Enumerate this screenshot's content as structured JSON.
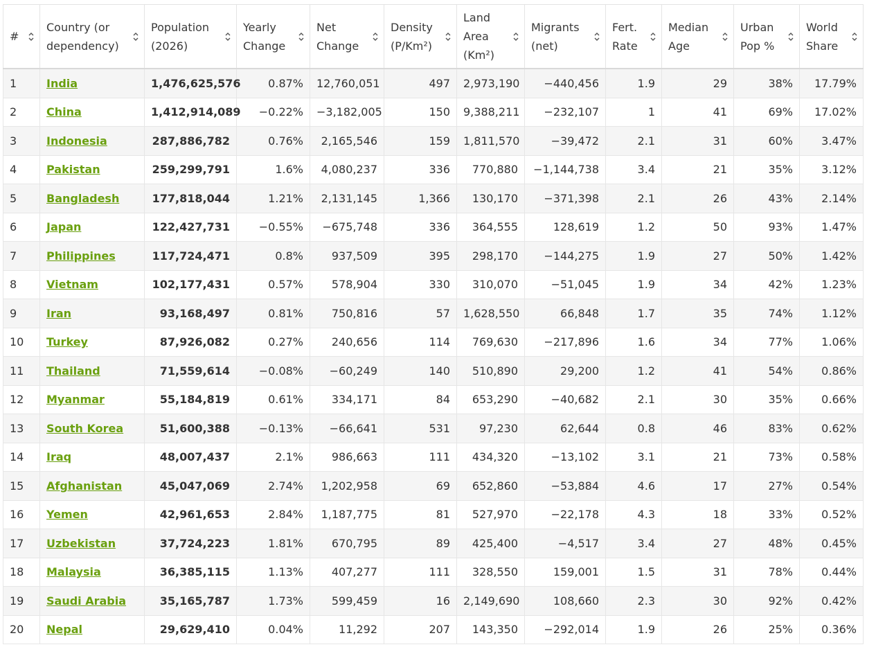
{
  "headers": [
    {
      "line1": "#",
      "line2": ""
    },
    {
      "line1": "Country (or",
      "line2": "dependency)"
    },
    {
      "line1": "Population",
      "line2": "(2026)"
    },
    {
      "line1": "Yearly",
      "line2": "Change"
    },
    {
      "line1": "Net",
      "line2": "Change"
    },
    {
      "line1": "Density",
      "line2": "(P/Km²)"
    },
    {
      "line1": "Land",
      "line2": "Area",
      "line3": "(Km²)"
    },
    {
      "line1": "Migrants",
      "line2": "(net)"
    },
    {
      "line1": "Fert.",
      "line2": "Rate"
    },
    {
      "line1": "Median",
      "line2": "Age"
    },
    {
      "line1": "Urban",
      "line2": "Pop %"
    },
    {
      "line1": "World",
      "line2": "Share"
    }
  ],
  "rows": [
    [
      "1",
      "India",
      "1,476,625,576",
      "0.87%",
      "12,760,051",
      "497",
      "2,973,190",
      "−440,456",
      "1.9",
      "29",
      "38%",
      "17.79%"
    ],
    [
      "2",
      "China",
      "1,412,914,089",
      "−0.22%",
      "−3,182,005",
      "150",
      "9,388,211",
      "−232,107",
      "1",
      "41",
      "69%",
      "17.02%"
    ],
    [
      "3",
      "Indonesia",
      "287,886,782",
      "0.76%",
      "2,165,546",
      "159",
      "1,811,570",
      "−39,472",
      "2.1",
      "31",
      "60%",
      "3.47%"
    ],
    [
      "4",
      "Pakistan",
      "259,299,791",
      "1.6%",
      "4,080,237",
      "336",
      "770,880",
      "−1,144,738",
      "3.4",
      "21",
      "35%",
      "3.12%"
    ],
    [
      "5",
      "Bangladesh",
      "177,818,044",
      "1.21%",
      "2,131,145",
      "1,366",
      "130,170",
      "−371,398",
      "2.1",
      "26",
      "43%",
      "2.14%"
    ],
    [
      "6",
      "Japan",
      "122,427,731",
      "−0.55%",
      "−675,748",
      "336",
      "364,555",
      "128,619",
      "1.2",
      "50",
      "93%",
      "1.47%"
    ],
    [
      "7",
      "Philippines",
      "117,724,471",
      "0.8%",
      "937,509",
      "395",
      "298,170",
      "−144,275",
      "1.9",
      "27",
      "50%",
      "1.42%"
    ],
    [
      "8",
      "Vietnam",
      "102,177,431",
      "0.57%",
      "578,904",
      "330",
      "310,070",
      "−51,045",
      "1.9",
      "34",
      "42%",
      "1.23%"
    ],
    [
      "9",
      "Iran",
      "93,168,497",
      "0.81%",
      "750,816",
      "57",
      "1,628,550",
      "66,848",
      "1.7",
      "35",
      "74%",
      "1.12%"
    ],
    [
      "10",
      "Turkey",
      "87,926,082",
      "0.27%",
      "240,656",
      "114",
      "769,630",
      "−217,896",
      "1.6",
      "34",
      "77%",
      "1.06%"
    ],
    [
      "11",
      "Thailand",
      "71,559,614",
      "−0.08%",
      "−60,249",
      "140",
      "510,890",
      "29,200",
      "1.2",
      "41",
      "54%",
      "0.86%"
    ],
    [
      "12",
      "Myanmar",
      "55,184,819",
      "0.61%",
      "334,171",
      "84",
      "653,290",
      "−40,682",
      "2.1",
      "30",
      "35%",
      "0.66%"
    ],
    [
      "13",
      "South Korea",
      "51,600,388",
      "−0.13%",
      "−66,641",
      "531",
      "97,230",
      "62,644",
      "0.8",
      "46",
      "83%",
      "0.62%"
    ],
    [
      "14",
      "Iraq",
      "48,007,437",
      "2.1%",
      "986,663",
      "111",
      "434,320",
      "−13,102",
      "3.1",
      "21",
      "73%",
      "0.58%"
    ],
    [
      "15",
      "Afghanistan",
      "45,047,069",
      "2.74%",
      "1,202,958",
      "69",
      "652,860",
      "−53,884",
      "4.6",
      "17",
      "27%",
      "0.54%"
    ],
    [
      "16",
      "Yemen",
      "42,961,653",
      "2.84%",
      "1,187,775",
      "81",
      "527,970",
      "−22,178",
      "4.3",
      "18",
      "33%",
      "0.52%"
    ],
    [
      "17",
      "Uzbekistan",
      "37,724,223",
      "1.81%",
      "670,795",
      "89",
      "425,400",
      "−4,517",
      "3.4",
      "27",
      "48%",
      "0.45%"
    ],
    [
      "18",
      "Malaysia",
      "36,385,115",
      "1.13%",
      "407,277",
      "111",
      "328,550",
      "159,001",
      "1.5",
      "31",
      "78%",
      "0.44%"
    ],
    [
      "19",
      "Saudi Arabia",
      "35,165,787",
      "1.73%",
      "599,459",
      "16",
      "2,149,690",
      "108,660",
      "2.3",
      "30",
      "92%",
      "0.42%"
    ],
    [
      "20",
      "Nepal",
      "29,629,410",
      "0.04%",
      "11,292",
      "207",
      "143,350",
      "−292,014",
      "1.9",
      "26",
      "25%",
      "0.36%"
    ]
  ],
  "colors": {
    "link": "#6aa00f",
    "stripe": "#f5f5f5",
    "border": "#e6e6e6"
  }
}
